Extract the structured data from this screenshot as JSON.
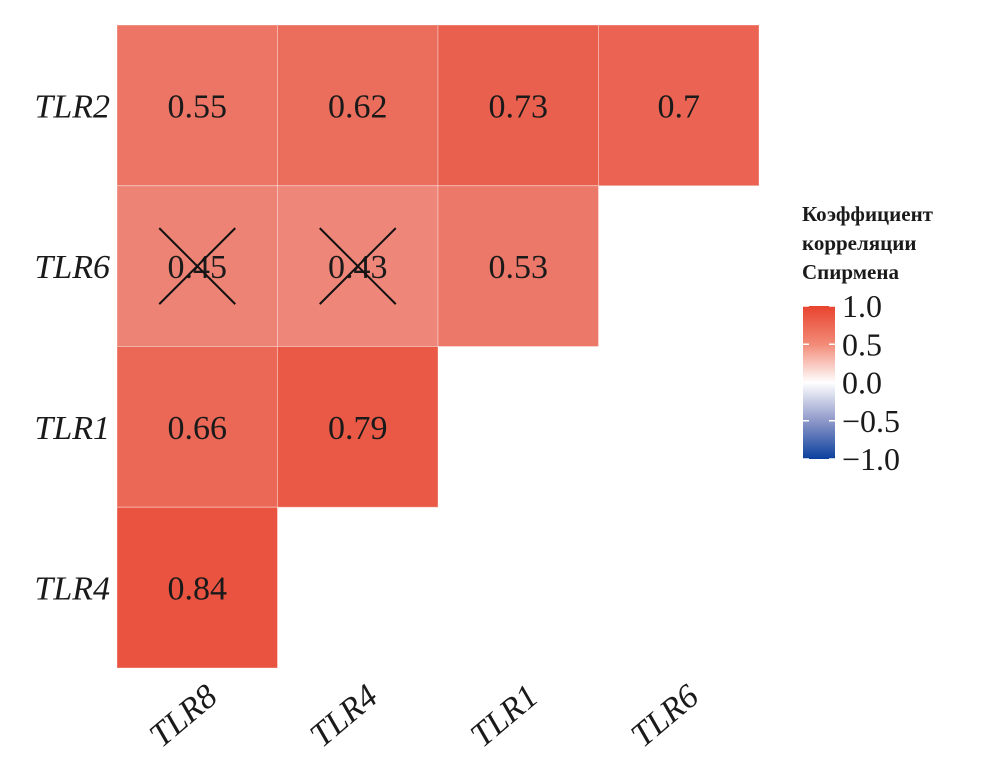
{
  "chart_data": {
    "type": "heatmap",
    "rows": [
      "TLR2",
      "TLR6",
      "TLR1",
      "TLR4"
    ],
    "columns": [
      "TLR8",
      "TLR4",
      "TLR1",
      "TLR6"
    ],
    "cells": [
      {
        "row": "TLR2",
        "col": "TLR8",
        "value": 0.55,
        "label": "0.55",
        "crossed": false
      },
      {
        "row": "TLR2",
        "col": "TLR4",
        "value": 0.62,
        "label": "0.62",
        "crossed": false
      },
      {
        "row": "TLR2",
        "col": "TLR1",
        "value": 0.73,
        "label": "0.73",
        "crossed": false
      },
      {
        "row": "TLR2",
        "col": "TLR6",
        "value": 0.7,
        "label": "0.7",
        "crossed": false
      },
      {
        "row": "TLR6",
        "col": "TLR8",
        "value": 0.45,
        "label": "0.45",
        "crossed": true
      },
      {
        "row": "TLR6",
        "col": "TLR4",
        "value": 0.43,
        "label": "0.43",
        "crossed": true
      },
      {
        "row": "TLR6",
        "col": "TLR1",
        "value": 0.53,
        "label": "0.53",
        "crossed": false
      },
      {
        "row": "TLR1",
        "col": "TLR8",
        "value": 0.66,
        "label": "0.66",
        "crossed": false
      },
      {
        "row": "TLR1",
        "col": "TLR4",
        "value": 0.79,
        "label": "0.79",
        "crossed": false
      },
      {
        "row": "TLR4",
        "col": "TLR8",
        "value": 0.84,
        "label": "0.84",
        "crossed": false
      }
    ],
    "legend": {
      "title_lines": [
        "Коэффициент",
        "корреляции",
        "Спирмена"
      ],
      "ticks": [
        {
          "value": 1.0,
          "label": "1.0"
        },
        {
          "value": 0.5,
          "label": "0.5"
        },
        {
          "value": 0.0,
          "label": "0.0"
        },
        {
          "value": -0.5,
          "label": "−0.5"
        },
        {
          "value": -1.0,
          "label": "−1.0"
        }
      ],
      "range": [
        -1.0,
        1.0
      ],
      "placement": "right"
    },
    "color_scale": {
      "low": "#053061",
      "mid": "#f7f7f7",
      "high": "#e8432e"
    },
    "grid": false
  }
}
